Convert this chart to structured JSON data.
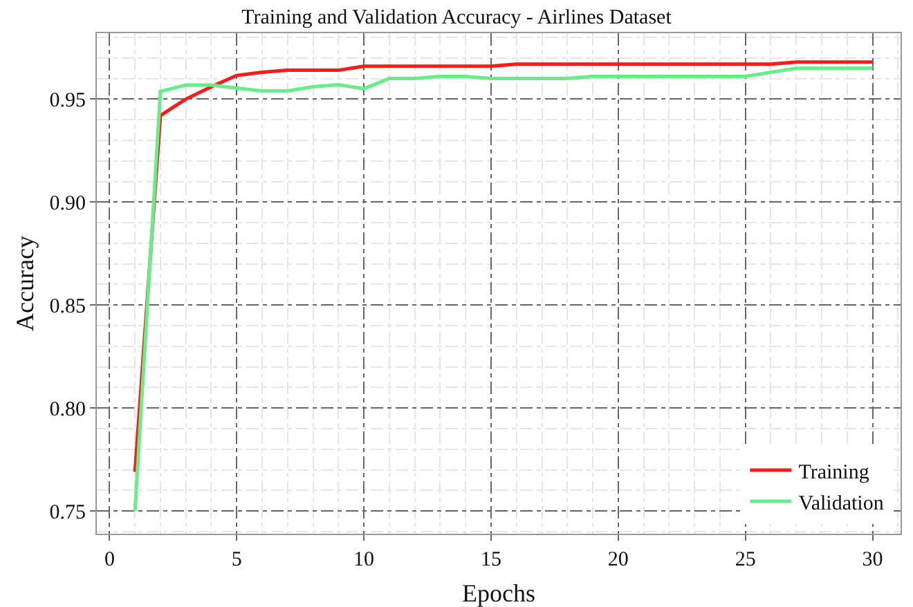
{
  "chart_data": {
    "type": "line",
    "title": "Training and Validation Accuracy - Airlines Dataset",
    "xlabel": "Epochs",
    "ylabel": "Accuracy",
    "x": [
      1,
      2,
      3,
      4,
      5,
      6,
      7,
      8,
      9,
      10,
      11,
      12,
      13,
      14,
      15,
      16,
      17,
      18,
      19,
      20,
      21,
      22,
      23,
      24,
      25,
      26,
      27,
      28,
      29,
      30
    ],
    "series": [
      {
        "name": "Training",
        "color": "#ff1a1a",
        "values": [
          0.769,
          0.942,
          0.95,
          0.956,
          0.9615,
          0.963,
          0.964,
          0.964,
          0.964,
          0.966,
          0.966,
          0.966,
          0.966,
          0.966,
          0.966,
          0.967,
          0.967,
          0.967,
          0.967,
          0.967,
          0.967,
          0.967,
          0.967,
          0.967,
          0.967,
          0.967,
          0.968,
          0.968,
          0.968,
          0.968
        ]
      },
      {
        "name": "Validation",
        "color": "#66ee88",
        "values": [
          0.75,
          0.9537,
          0.9568,
          0.9568,
          0.9553,
          0.954,
          0.954,
          0.956,
          0.957,
          0.955,
          0.96,
          0.96,
          0.961,
          0.961,
          0.96,
          0.96,
          0.96,
          0.96,
          0.961,
          0.961,
          0.961,
          0.961,
          0.961,
          0.961,
          0.961,
          0.963,
          0.965,
          0.965,
          0.965,
          0.965
        ]
      }
    ],
    "xlim": [
      -0.5,
      31.1
    ],
    "xticks": [
      0,
      5,
      10,
      15,
      20,
      25,
      30
    ],
    "ylim": [
      0.739,
      0.982
    ],
    "yticks": [
      {
        "value": 0.75,
        "label": "0.75"
      },
      {
        "value": 0.8,
        "label": "0.80"
      },
      {
        "value": 0.85,
        "label": "0.85"
      },
      {
        "value": 0.9,
        "label": "0.90"
      },
      {
        "value": 0.95,
        "label": "0.95"
      }
    ],
    "grid": true,
    "legend": "bottom right",
    "marker": "none",
    "line_style": "solid"
  }
}
